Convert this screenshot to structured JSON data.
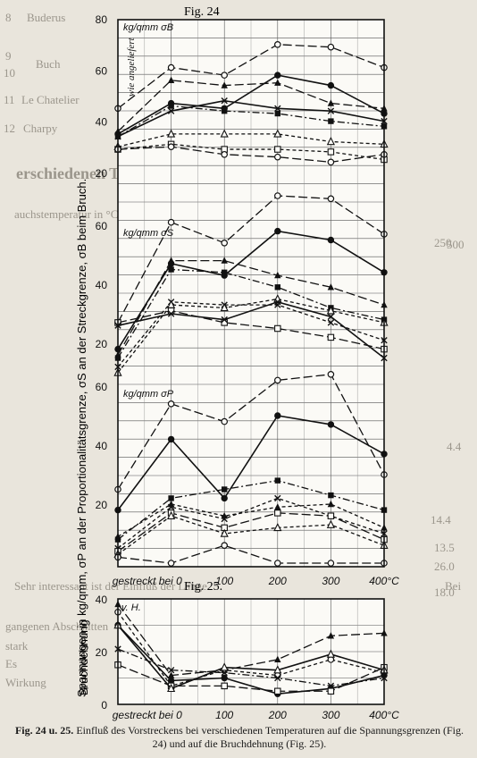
{
  "background_text": {
    "row_8": "8",
    "row_9": "9",
    "row_10": "10",
    "row_11": "11",
    "row_12": "12",
    "word_buderus": "Buderus",
    "word_buch": "Buch",
    "word_le_chatelier": "Le Chatelier",
    "word_charpy": "Charpy",
    "heading_fragment": "erschiedenen Temperaturen",
    "subheading_fragment": "auchstemperatur in °C",
    "col_250": "250",
    "col_500": "500",
    "val_1": "4.4",
    "val_2": "14.4",
    "val_3": "13.5",
    "val_4": "26.0",
    "val_5": "18.0",
    "bottom_fragment_1": "Sehr interessant ist der Einfluß der Länge.",
    "bottom_fragment_2": "Bei",
    "bottom_fragment_3": "gangenen Abschnitten",
    "bottom_fragment_4": "stark",
    "bottom_fragment_5": "Es",
    "bottom_fragment_6": "Wirkung"
  },
  "fig24_title": "Fig. 24",
  "fig25_title": "Fig. 25.",
  "caption": {
    "label": "Fig. 24 u. 25.",
    "text": "Einfluß des Vorstreckens bei verschiedenen Temperaturen auf die Spannungsgrenzen (Fig. 24) und auf die Bruchdehnung (Fig. 25)."
  },
  "chart_data": [
    {
      "type": "line",
      "figure": "Fig. 24",
      "ylabel": "Spannungen in kg/qmm, σP an der Proportionalitätsgrenze, σS an der Streckgrenze, σB beim Bruch.",
      "x_categories": [
        "gestreckt bei",
        "0",
        "100",
        "200",
        "300",
        "400°C"
      ],
      "x": [
        -100,
        0,
        100,
        200,
        300,
        400
      ],
      "x_tick_labels": [
        "gestreckt bei 0",
        "100",
        "200",
        "300",
        "400°C"
      ],
      "stacked_scales": [
        {
          "label": "kg/qmm σB",
          "ticks": [
            "80",
            "60",
            "40",
            "20"
          ],
          "note": "wie angeliefert"
        },
        {
          "label": "kg/qmm σS",
          "ticks": [
            "60",
            "40",
            "20"
          ]
        },
        {
          "label": "kg/qmm σP",
          "ticks": [
            "60",
            "40",
            "20"
          ]
        }
      ],
      "y_range_note": "three stacked scales each 0-60/80 kg/qmm",
      "panels": [
        {
          "quantity": "σB",
          "ylim": [
            0,
            80
          ],
          "series": [
            {
              "style": "long-dash",
              "marker": "open-circle",
              "values": [
                45,
                61,
                58,
                70,
                69,
                61
              ]
            },
            {
              "style": "long-dash",
              "marker": "filled-triangle",
              "values": [
                36,
                56,
                54,
                55,
                47,
                45
              ]
            },
            {
              "style": "solid",
              "marker": "filled-circle",
              "values": [
                35,
                47,
                45,
                58,
                54,
                43
              ]
            },
            {
              "style": "solid",
              "marker": "cross",
              "values": [
                34,
                44,
                48,
                45,
                44,
                40
              ]
            },
            {
              "style": "dash-dot",
              "marker": "filled-square",
              "values": [
                34,
                46,
                44,
                43,
                40,
                38
              ]
            },
            {
              "style": "short-dash",
              "marker": "open-triangle",
              "values": [
                30,
                35,
                35,
                35,
                32,
                31
              ]
            },
            {
              "style": "short-dash",
              "marker": "open-square",
              "values": [
                29,
                31,
                29,
                29,
                28,
                25
              ]
            },
            {
              "style": "long-dash",
              "marker": "open-circle",
              "values": [
                29,
                30,
                27,
                26,
                24,
                27
              ]
            }
          ]
        },
        {
          "quantity": "σS",
          "ylim": [
            0,
            60
          ],
          "series": [
            {
              "style": "long-dash",
              "marker": "open-circle",
              "values": [
                27,
                61,
                54,
                70,
                69,
                57
              ]
            },
            {
              "style": "solid",
              "marker": "filled-circle",
              "values": [
                18,
                47,
                43,
                58,
                55,
                44
              ]
            },
            {
              "style": "long-dash",
              "marker": "filled-triangle",
              "values": [
                16,
                48,
                48,
                43,
                39,
                33
              ]
            },
            {
              "style": "dash-dot",
              "marker": "filled-square",
              "values": [
                15,
                45,
                44,
                39,
                32,
                28
              ]
            },
            {
              "style": "short-dash",
              "marker": "cross",
              "values": [
                12,
                34,
                33,
                33,
                27,
                21
              ]
            },
            {
              "style": "short-dash",
              "marker": "open-triangle",
              "values": [
                10,
                33,
                32,
                35,
                31,
                27
              ]
            },
            {
              "style": "long-dash",
              "marker": "open-square",
              "values": [
                27,
                31,
                27,
                25,
                22,
                18
              ]
            },
            {
              "style": "solid",
              "marker": "cross",
              "values": [
                26,
                30,
                28,
                34,
                29,
                15
              ]
            }
          ]
        },
        {
          "quantity": "σP",
          "ylim": [
            0,
            60
          ],
          "series": [
            {
              "style": "long-dash",
              "marker": "open-circle",
              "values": [
                25,
                54,
                48,
                62,
                64,
                30
              ]
            },
            {
              "style": "solid",
              "marker": "filled-circle",
              "values": [
                18,
                42,
                22,
                50,
                47,
                37
              ]
            },
            {
              "style": "dash-dot",
              "marker": "filled-square",
              "values": [
                8,
                22,
                25,
                28,
                23,
                18
              ]
            },
            {
              "style": "short-dash",
              "marker": "filled-triangle",
              "values": [
                9,
                20,
                16,
                19,
                20,
                12
              ]
            },
            {
              "style": "short-dash",
              "marker": "cross",
              "values": [
                5,
                19,
                15,
                22,
                16,
                10
              ]
            },
            {
              "style": "long-dash",
              "marker": "open-square",
              "values": [
                4,
                17,
                12,
                17,
                16,
                8
              ]
            },
            {
              "style": "short-dash",
              "marker": "open-triangle",
              "values": [
                3,
                16,
                10,
                12,
                13,
                6
              ]
            },
            {
              "style": "long-dash",
              "marker": "open-circle",
              "values": [
                2,
                0,
                6,
                0,
                0,
                0
              ]
            }
          ]
        }
      ]
    },
    {
      "type": "line",
      "figure": "Fig. 25.",
      "ylabel": "Bruchdehnung",
      "unit_label": "v. H.",
      "x": [
        -100,
        0,
        100,
        200,
        300,
        400
      ],
      "x_tick_labels": [
        "gestreckt bei 0",
        "100",
        "200",
        "300",
        "400°C"
      ],
      "y_ticks": [
        "40",
        "20",
        "0"
      ],
      "ylim": [
        0,
        40
      ],
      "series": [
        {
          "style": "long-dash",
          "marker": "filled-triangle",
          "values": [
            38,
            11,
            13,
            17,
            26,
            27
          ]
        },
        {
          "style": "short-dash",
          "marker": "open-circle",
          "values": [
            35,
            7,
            13,
            11,
            17,
            12
          ]
        },
        {
          "style": "solid",
          "marker": "filled-circle",
          "values": [
            30,
            9,
            10,
            4,
            6,
            11
          ]
        },
        {
          "style": "dash-dot",
          "marker": "cross",
          "values": [
            21,
            13,
            12,
            10,
            7,
            10
          ]
        },
        {
          "style": "long-dash",
          "marker": "open-square",
          "values": [
            15,
            7,
            7,
            5,
            5,
            14
          ]
        },
        {
          "style": "solid",
          "marker": "open-triangle",
          "values": [
            30,
            6,
            14,
            13,
            19,
            13
          ]
        }
      ]
    }
  ]
}
